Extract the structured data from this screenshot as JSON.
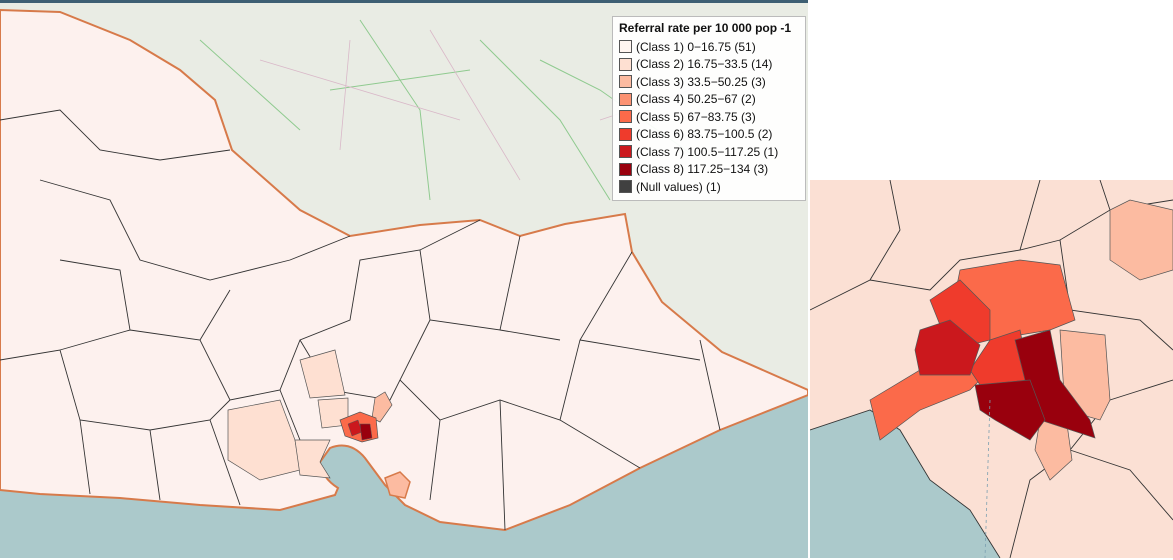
{
  "legend": {
    "title": "Referral rate per 10 000 pop -1",
    "items": [
      {
        "label": "(Class 1) 0−16.75 (51)",
        "color": "#fff5f0"
      },
      {
        "label": "(Class 2) 16.75−33.5 (14)",
        "color": "#fee0d2"
      },
      {
        "label": "(Class 3) 33.5−50.25 (3)",
        "color": "#fcbba1"
      },
      {
        "label": "(Class 4) 50.25−67 (2)",
        "color": "#fc9272"
      },
      {
        "label": "(Class 5) 67−83.75 (3)",
        "color": "#fb6a4a"
      },
      {
        "label": "(Class 6) 83.75−100.5 (2)",
        "color": "#ef3b2c"
      },
      {
        "label": "(Class 7) 100.5−117.25 (1)",
        "color": "#cb181d"
      },
      {
        "label": "(Class 8) 117.25−134 (3)",
        "color": "#99000d"
      },
      {
        "label": "(Null values) (1)",
        "color": "#404040"
      }
    ]
  }
}
